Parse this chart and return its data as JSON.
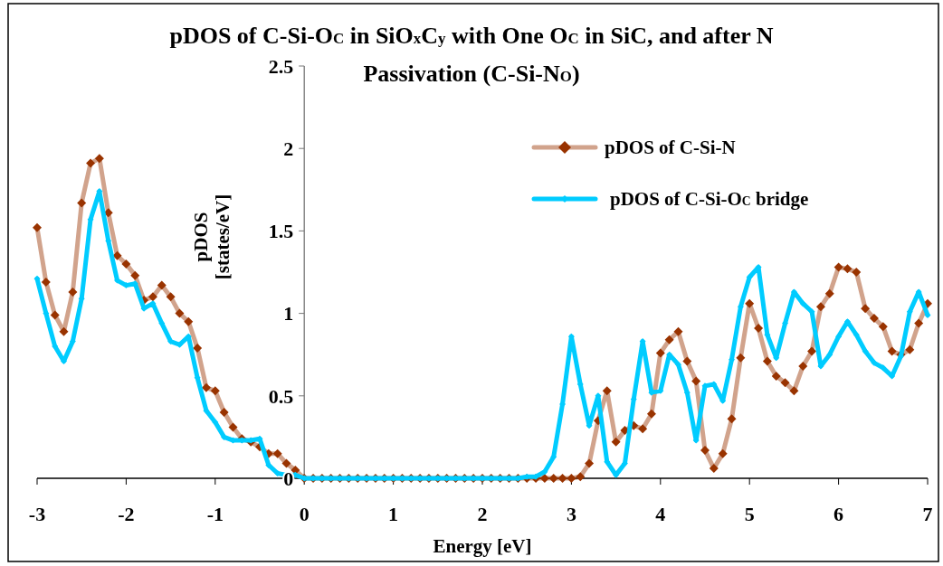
{
  "chart_data": {
    "type": "line",
    "title": "pDOS of C-Si-O$_{C}$ in SiO$_{x}$C$_{y}$ with One O$_{C}$ in SiC, and after N Passivation (C-Si-N$_{O}$)",
    "xlabel": "Energy [eV]",
    "ylabel": "pDOS [states/eV]",
    "x": [
      -3,
      -2.9,
      -2.8,
      -2.7,
      -2.6,
      -2.5,
      -2.4,
      -2.3,
      -2.2,
      -2.1,
      -2,
      -1.9,
      -1.8,
      -1.7,
      -1.6,
      -1.5,
      -1.4,
      -1.3,
      -1.2,
      -1.1,
      -1,
      -0.9,
      -0.8,
      -0.7,
      -0.6,
      -0.5,
      -0.4,
      -0.3,
      -0.2,
      -0.1,
      0,
      0.1,
      0.2,
      0.3,
      0.4,
      0.5,
      0.6,
      0.7,
      0.8,
      0.9,
      1,
      1.1,
      1.2,
      1.3,
      1.4,
      1.5,
      1.6,
      1.7,
      1.8,
      1.9,
      2,
      2.1,
      2.2,
      2.3,
      2.4,
      2.5,
      2.6,
      2.7,
      2.8,
      2.9,
      3,
      3.1,
      3.2,
      3.3,
      3.4,
      3.5,
      3.6,
      3.7,
      3.8,
      3.9,
      4,
      4.1,
      4.2,
      4.3,
      4.4,
      4.5,
      4.6,
      4.7,
      4.8,
      4.9,
      5,
      5.1,
      5.2,
      5.3,
      5.4,
      5.5,
      5.6,
      5.7,
      5.8,
      5.9,
      6,
      6.1,
      6.2,
      6.3,
      6.4,
      6.5,
      6.6,
      6.7,
      6.8,
      6.9,
      7
    ],
    "series": [
      {
        "name": "pDOS of C-Si-N",
        "color": "#993300",
        "values": [
          1.52,
          1.19,
          0.99,
          0.89,
          1.13,
          1.67,
          1.91,
          1.94,
          1.61,
          1.35,
          1.3,
          1.23,
          1.08,
          1.1,
          1.17,
          1.1,
          1.0,
          0.95,
          0.79,
          0.55,
          0.53,
          0.4,
          0.31,
          0.24,
          0.22,
          0.19,
          0.15,
          0.15,
          0.09,
          0.05,
          0,
          0,
          0,
          0,
          0,
          0,
          0,
          0,
          0,
          0,
          0,
          0,
          0,
          0,
          0,
          0,
          0,
          0,
          0,
          0,
          0,
          0,
          0,
          0,
          0,
          0,
          0,
          0,
          0,
          0,
          0,
          0.01,
          0.09,
          0.35,
          0.53,
          0.22,
          0.29,
          0.32,
          0.3,
          0.39,
          0.76,
          0.84,
          0.89,
          0.71,
          0.59,
          0.17,
          0.06,
          0.15,
          0.36,
          0.73,
          1.06,
          0.91,
          0.71,
          0.62,
          0.58,
          0.53,
          0.68,
          0.77,
          1.04,
          1.12,
          1.28,
          1.27,
          1.25,
          1.03,
          0.97,
          0.92,
          0.77,
          0.75,
          0.78,
          0.94,
          1.06
        ]
      },
      {
        "name": "pDOS of C-Si-O$_{C}$ bridge",
        "color": "#00ccff",
        "values": [
          1.21,
          1.0,
          0.8,
          0.71,
          0.83,
          1.09,
          1.57,
          1.74,
          1.44,
          1.2,
          1.17,
          1.18,
          1.03,
          1.06,
          0.94,
          0.83,
          0.81,
          0.86,
          0.61,
          0.41,
          0.34,
          0.25,
          0.23,
          0.23,
          0.23,
          0.24,
          0.08,
          0.03,
          0.02,
          0.02,
          0,
          0,
          0,
          0,
          0,
          0,
          0,
          0,
          0,
          0,
          0,
          0,
          0,
          0,
          0,
          0,
          0,
          0,
          0,
          0,
          0,
          0,
          0,
          0,
          0,
          0.01,
          0.01,
          0.04,
          0.13,
          0.45,
          0.86,
          0.57,
          0.32,
          0.5,
          0.1,
          0.02,
          0.09,
          0.48,
          0.83,
          0.52,
          0.53,
          0.75,
          0.69,
          0.52,
          0.23,
          0.56,
          0.57,
          0.47,
          0.72,
          1.04,
          1.22,
          1.28,
          0.87,
          0.73,
          0.94,
          1.13,
          1.06,
          1.01,
          0.68,
          0.75,
          0.86,
          0.95,
          0.87,
          0.77,
          0.7,
          0.67,
          0.62,
          0.74,
          1.01,
          1.13,
          0.99
        ]
      }
    ],
    "xlim": [
      -3,
      7
    ],
    "ylim": [
      0,
      2.5
    ],
    "xticks": [
      -3,
      -2,
      -1,
      0,
      1,
      2,
      3,
      4,
      5,
      6,
      7
    ],
    "yticks": [
      0,
      0.5,
      1,
      1.5,
      2,
      2.5
    ],
    "grid": false,
    "legend": "top right",
    "marker": "diamond",
    "line_style": "solid"
  }
}
